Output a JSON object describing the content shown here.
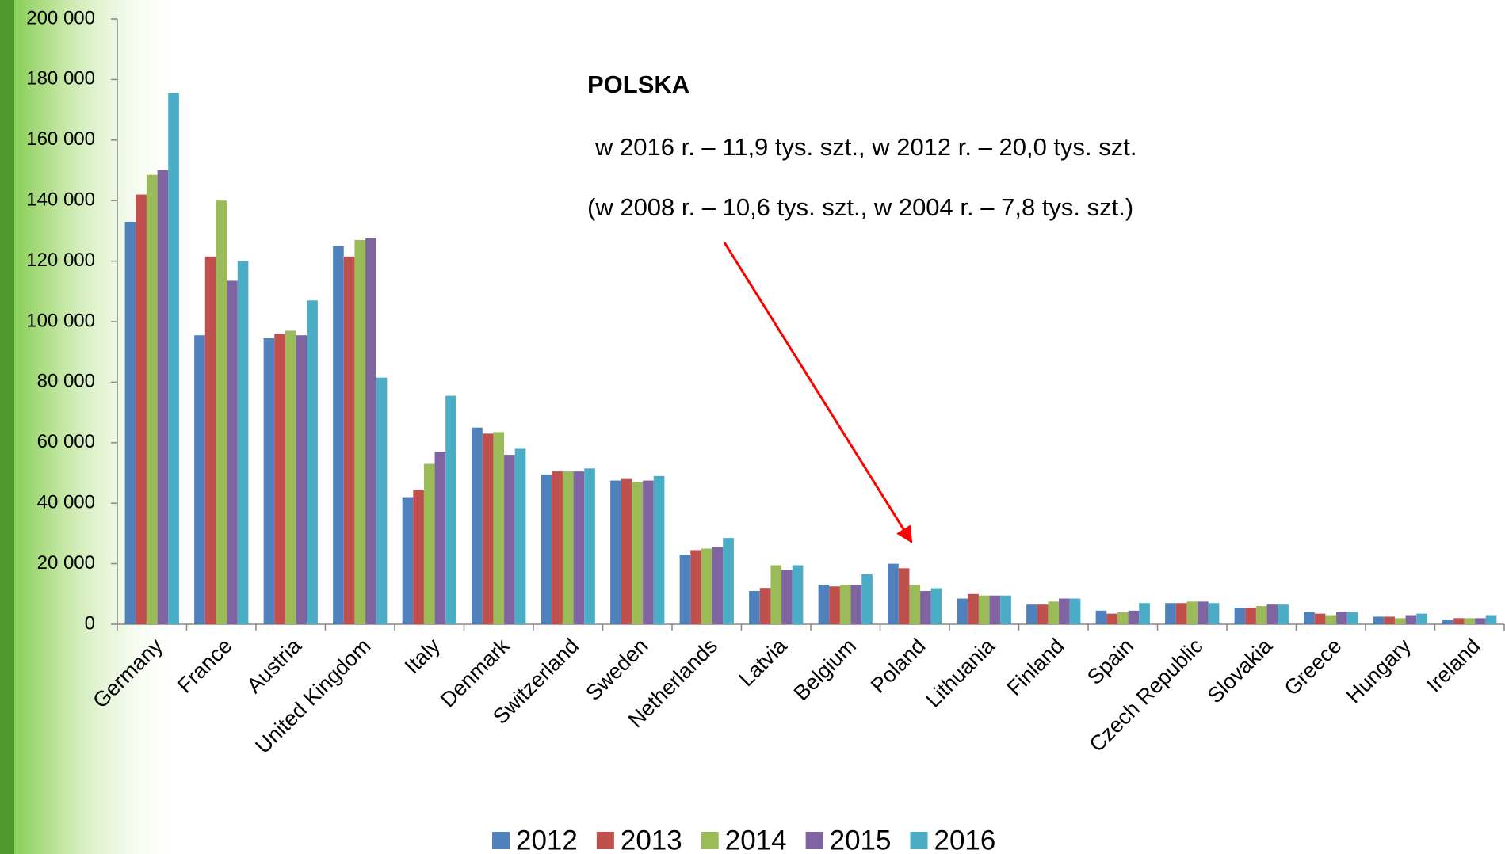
{
  "chart_data": {
    "type": "bar",
    "annotations": [
      "POLSKA",
      "w 2016 r. – 11,9 tys. szt., w 2012 r. – 20,0 tys. szt.",
      "(w 2008 r. – 10,6 tys. szt., w 2004 r. – 7,8 tys. szt.)"
    ],
    "categories": [
      "Germany",
      "France",
      "Austria",
      "United Kingdom",
      "Italy",
      "Denmark",
      "Switzerland",
      "Sweden",
      "Netherlands",
      "Latvia",
      "Belgium",
      "Poland",
      "Lithuania",
      "Finland",
      "Spain",
      "Czech Republic",
      "Slovakia",
      "Greece",
      "Hungary",
      "Ireland"
    ],
    "series": [
      {
        "name": "2012",
        "color": "#4f81bd",
        "values": [
          133000,
          95500,
          94500,
          125000,
          42000,
          65000,
          49500,
          47500,
          23000,
          11000,
          13000,
          20000,
          8500,
          6500,
          4500,
          7000,
          5500,
          4000,
          2500,
          1500
        ]
      },
      {
        "name": "2013",
        "color": "#c0504d",
        "values": [
          142000,
          121500,
          96000,
          121500,
          44500,
          63000,
          50500,
          48000,
          24500,
          12000,
          12500,
          18500,
          10000,
          6500,
          3500,
          7000,
          5500,
          3500,
          2500,
          2000
        ]
      },
      {
        "name": "2014",
        "color": "#9bbb59",
        "values": [
          148500,
          140000,
          97000,
          127000,
          53000,
          63500,
          50500,
          47000,
          25000,
          19500,
          13000,
          13000,
          9500,
          7500,
          4000,
          7500,
          6000,
          3000,
          2000,
          2000
        ]
      },
      {
        "name": "2015",
        "color": "#8064a2",
        "values": [
          150000,
          113500,
          95500,
          127500,
          57000,
          56000,
          50500,
          47500,
          25500,
          18000,
          13000,
          11000,
          9500,
          8500,
          4500,
          7500,
          6500,
          4000,
          3000,
          2000
        ]
      },
      {
        "name": "2016",
        "color": "#4bacc6",
        "values": [
          175500,
          120000,
          107000,
          81500,
          75500,
          58000,
          51500,
          49000,
          28500,
          19500,
          16500,
          11900,
          9500,
          8500,
          7000,
          7000,
          6500,
          4000,
          3500,
          3000
        ]
      }
    ],
    "ylim": [
      0,
      200000
    ],
    "yticks": [
      0,
      {
        "value": 20000,
        "label": "20 000"
      },
      {
        "value": 40000,
        "label": "40 000"
      },
      {
        "value": 60000,
        "label": "60 000"
      },
      {
        "value": 80000,
        "label": "80 000"
      },
      {
        "value": 100000,
        "label": "100 000"
      },
      {
        "value": 120000,
        "label": "120 000"
      },
      {
        "value": 140000,
        "label": "140 000"
      },
      {
        "value": 160000,
        "label": "160 000"
      },
      {
        "value": 180000,
        "label": "180 000"
      },
      {
        "value": 200000,
        "label": "200 000"
      }
    ],
    "grid": false,
    "legend": "bottom"
  }
}
